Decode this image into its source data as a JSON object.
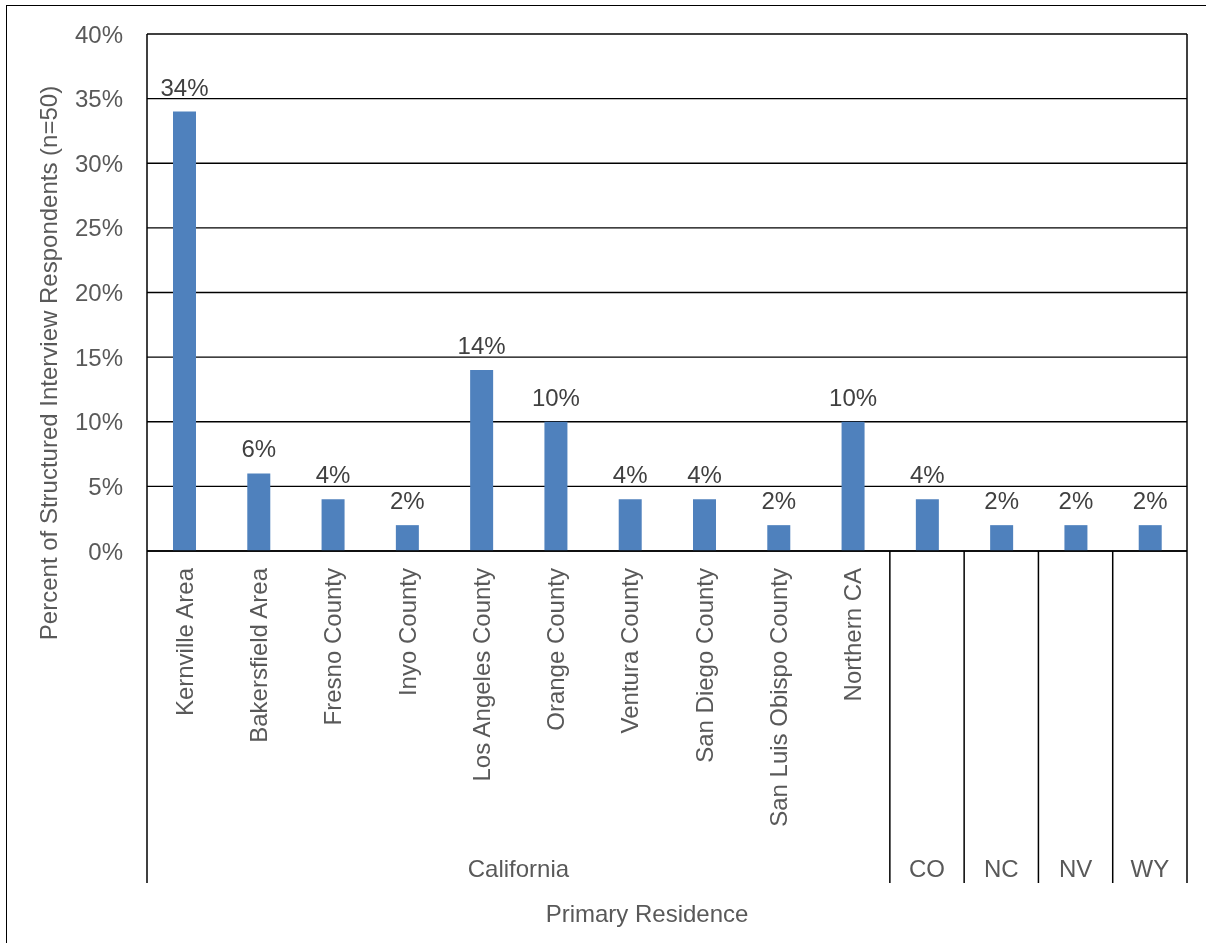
{
  "chart_data": {
    "type": "bar",
    "xlabel": "Primary Residence",
    "ylabel": "Percent of Structured Interview Respondents (n=50)",
    "categories": [
      "Kernville Area",
      "Bakersfield Area",
      "Fresno County",
      "Inyo County",
      "Los Angeles County",
      "Orange County",
      "Ventura County",
      "San Diego County",
      "San Luis Obispo County",
      "Northern CA",
      null,
      null,
      null,
      null
    ],
    "values": [
      34,
      6,
      4,
      2,
      14,
      10,
      4,
      4,
      2,
      10,
      4,
      2,
      2,
      2
    ],
    "value_labels": [
      "34%",
      "6%",
      "4%",
      "2%",
      "14%",
      "10%",
      "4%",
      "4%",
      "2%",
      "10%",
      "4%",
      "2%",
      "2%",
      "2%"
    ],
    "color": "#4f81bd",
    "ylim": [
      0,
      40
    ],
    "yticks": [
      {
        "value": 0,
        "label": "0%"
      },
      {
        "value": 5,
        "label": "5%"
      },
      {
        "value": 10,
        "label": "10%"
      },
      {
        "value": 15,
        "label": "15%"
      },
      {
        "value": 20,
        "label": "20%"
      },
      {
        "value": 25,
        "label": "25%"
      },
      {
        "value": 30,
        "label": "30%"
      },
      {
        "value": 35,
        "label": "35%"
      },
      {
        "value": 40,
        "label": "40%"
      }
    ],
    "grid": "y",
    "annotations": [
      "California",
      "CO",
      "NC",
      "NV",
      "WY"
    ]
  }
}
